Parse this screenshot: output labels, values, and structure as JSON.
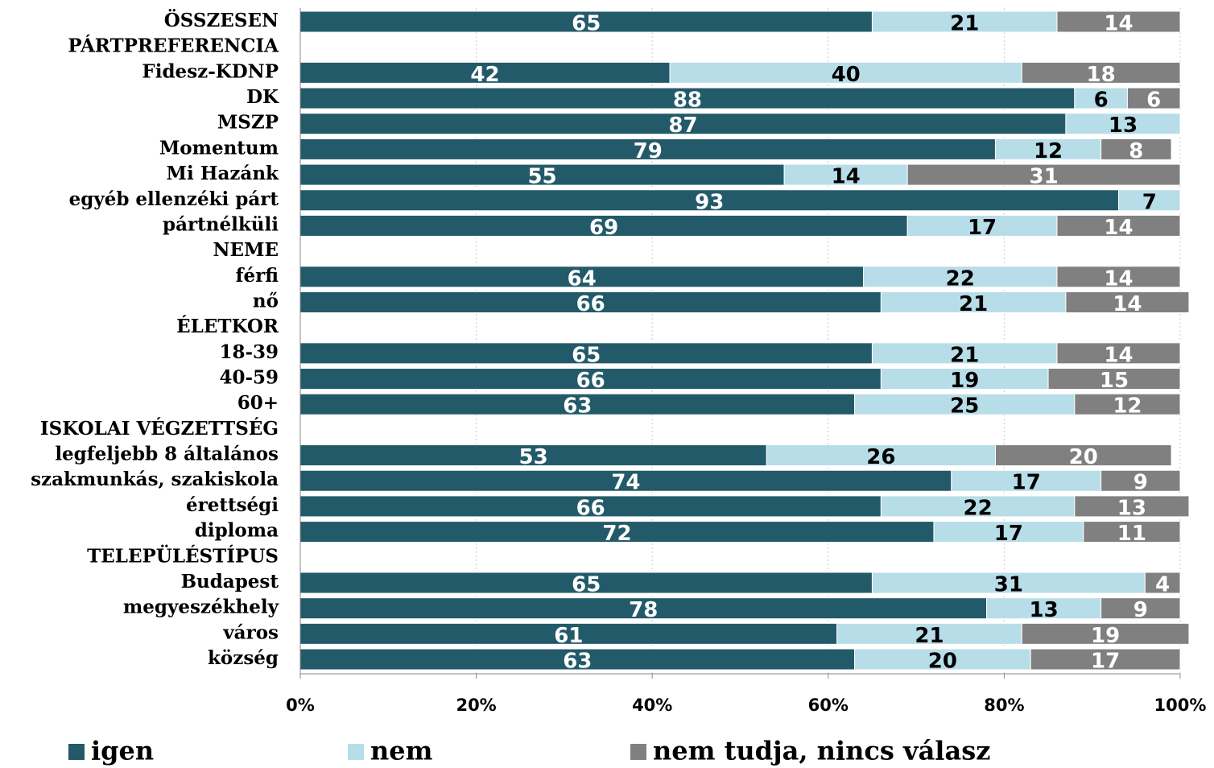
{
  "chart_data": {
    "type": "stacked_bar_horizontal",
    "categories": [
      "ÖSSZESEN",
      "PÁRTPREFERENCIA",
      "Fidesz-KDNP",
      "DK",
      "MSZP",
      "Momentum",
      "Mi Hazánk",
      "egyéb ellenzéki párt",
      "pártnélküli",
      "NEME",
      "férfi",
      "nő",
      "ÉLETKOR",
      "18-39",
      "40-59",
      "60+",
      "ISKOLAI VÉGZETTSÉG",
      "legfeljebb 8 általános",
      "szakmunkás, szakiskola",
      "érettségi",
      "diploma",
      "TELEPÜLÉSTÍPUS",
      "Budapest",
      "megyeszékhely",
      "város",
      "község"
    ],
    "series": [
      {
        "name": "igen",
        "color": "#235a69",
        "label_color": "#ffffff",
        "values": [
          65,
          null,
          42,
          88,
          87,
          79,
          55,
          93,
          69,
          null,
          64,
          66,
          null,
          65,
          66,
          63,
          null,
          53,
          74,
          66,
          72,
          null,
          65,
          78,
          61,
          63
        ]
      },
      {
        "name": "nem",
        "color": "#b7dde8",
        "label_color": "#000000",
        "values": [
          21,
          null,
          40,
          6,
          13,
          12,
          14,
          7,
          17,
          null,
          22,
          21,
          null,
          21,
          19,
          25,
          null,
          26,
          17,
          22,
          17,
          null,
          31,
          13,
          21,
          20
        ]
      },
      {
        "name": "nem tudja, nincs válasz",
        "color": "#808080",
        "label_color": "#ffffff",
        "values": [
          14,
          null,
          18,
          6,
          null,
          8,
          31,
          null,
          14,
          null,
          14,
          14,
          null,
          14,
          15,
          12,
          null,
          20,
          9,
          13,
          11,
          null,
          4,
          9,
          19,
          17
        ]
      }
    ],
    "xlim": [
      0,
      100
    ],
    "xticks": [
      {
        "value": 0,
        "label": "0%"
      },
      {
        "value": 20,
        "label": "20%"
      },
      {
        "value": 40,
        "label": "40%"
      },
      {
        "value": 60,
        "label": "60%"
      },
      {
        "value": 80,
        "label": "80%"
      },
      {
        "value": 100,
        "label": "100%"
      }
    ],
    "grid": true,
    "legend": "bottom"
  }
}
